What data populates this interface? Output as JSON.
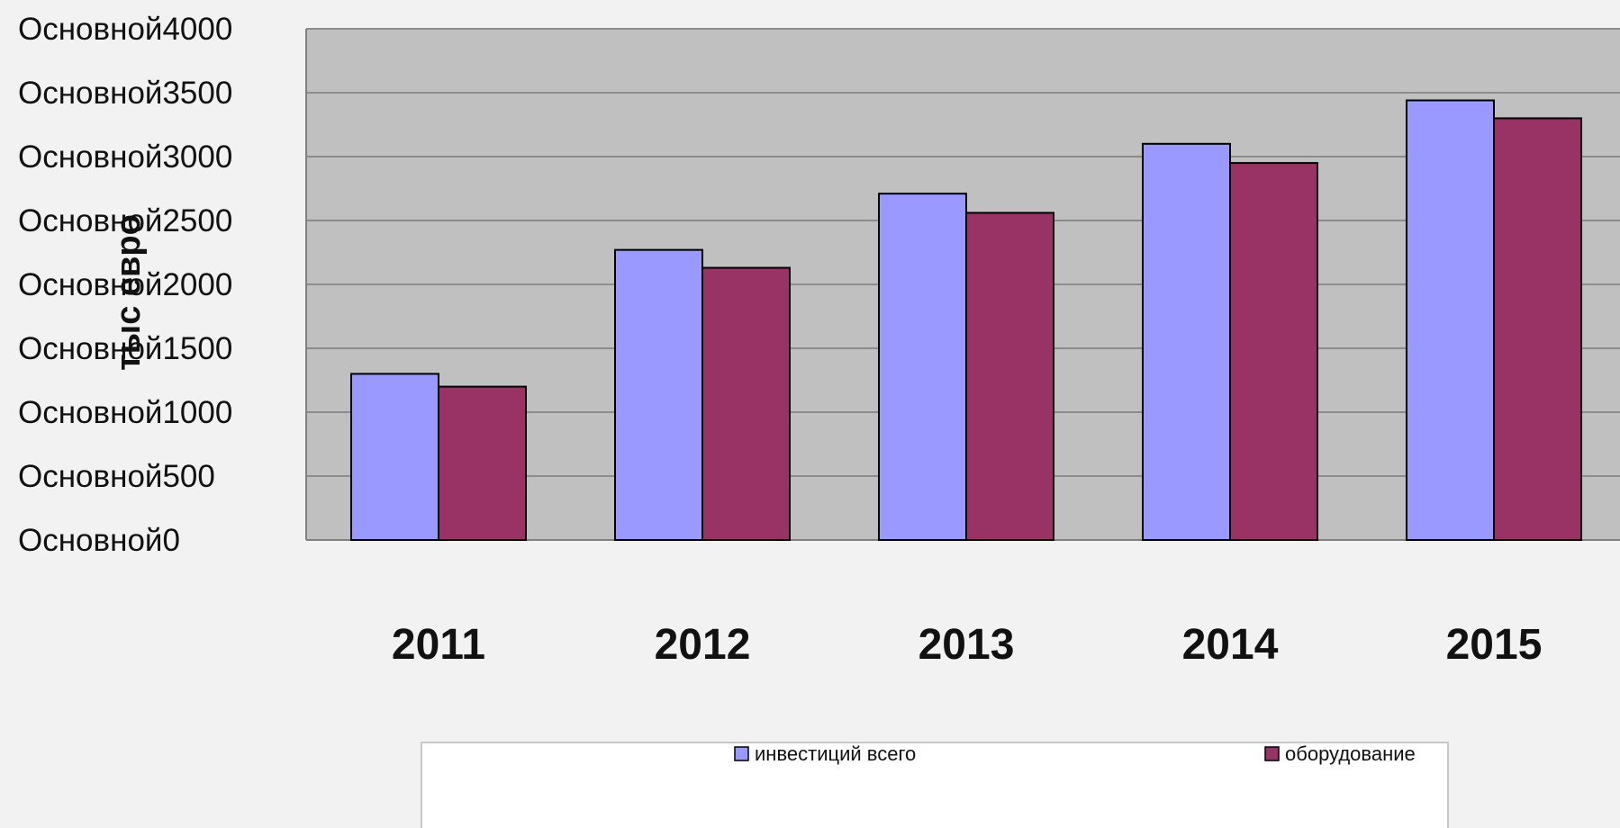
{
  "chart_data": {
    "type": "bar",
    "categories": [
      "2011",
      "2012",
      "2013",
      "2014",
      "2015"
    ],
    "series": [
      {
        "name": "инвестиций всего",
        "color": "#9999ff",
        "values": [
          1300,
          2270,
          2710,
          3100,
          3440
        ]
      },
      {
        "name": "оборудование",
        "color": "#993366",
        "values": [
          1200,
          2130,
          2560,
          2950,
          3300
        ]
      }
    ],
    "ylim": [
      0,
      4000
    ],
    "yticks": [
      0,
      500,
      1000,
      1500,
      2000,
      2500,
      3000,
      3500,
      4000
    ],
    "ytick_labels": [
      "Основной0",
      "Основной500",
      "Основной1000",
      "Основной1500",
      "Основной2000",
      "Основной2500",
      "Основной3000",
      "Основной3500",
      "Основной4000"
    ],
    "ylabel": "тыс евро",
    "xlabel": "",
    "title": "",
    "grid": true,
    "legend_position": "bottom",
    "plot_background": "#c0c0c0"
  }
}
